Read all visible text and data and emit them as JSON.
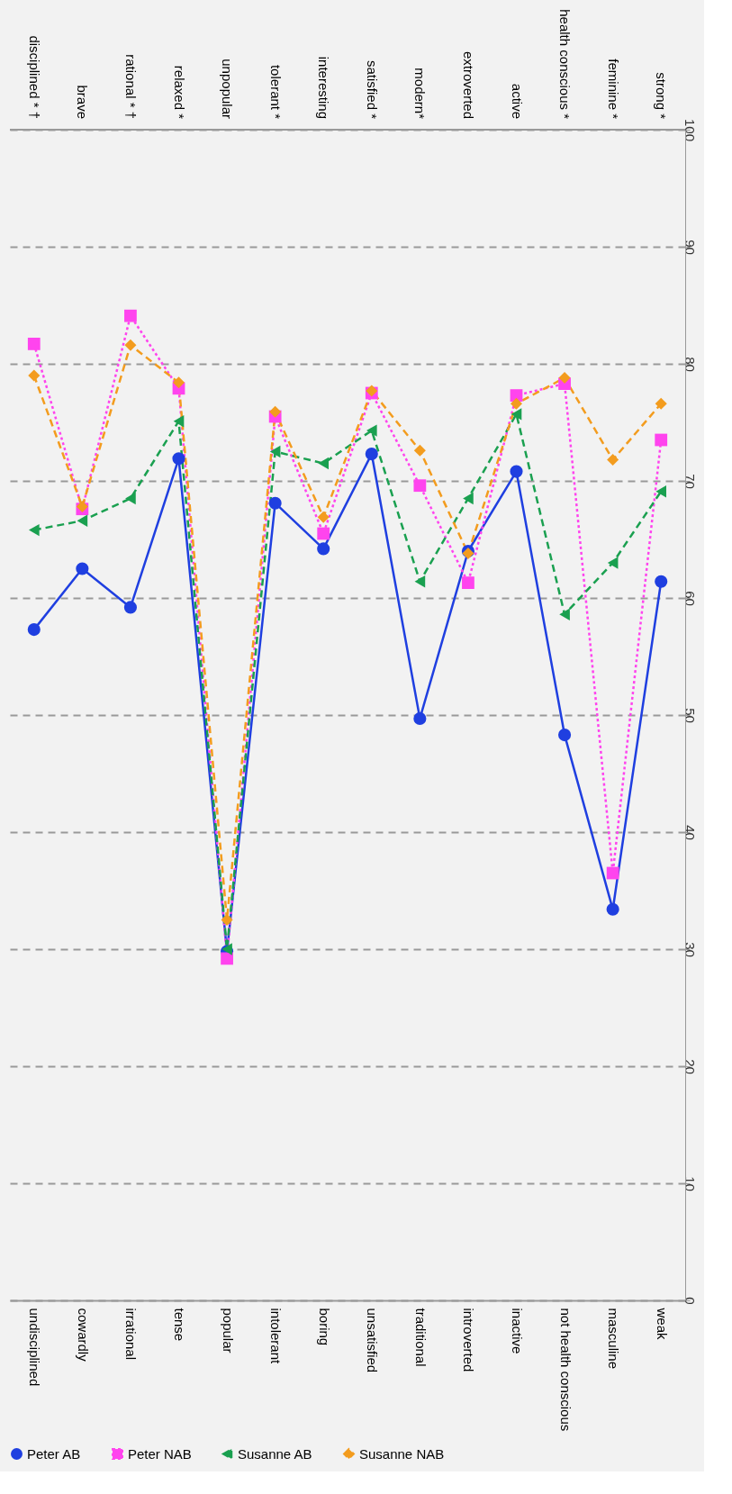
{
  "chart_data": {
    "type": "line",
    "categories": [
      "undisciplined",
      "cowardly",
      "irrational",
      "tense",
      "popular",
      "intolerant",
      "boring",
      "unsatisfied",
      "traditional",
      "introverted",
      "inactive",
      "not health conscious",
      "masculine",
      "weak"
    ],
    "annotations": [
      "disciplined * †",
      "brave",
      "rational * †",
      "relaxed *",
      "unpopular",
      "tolerant *",
      "interesting",
      "satisfied *",
      "modern*",
      "extroverted",
      "active",
      "health conscious *",
      "feminine *",
      "strong *"
    ],
    "series": [
      {
        "name": "Peter AB",
        "color": "#1f3fe0",
        "marker": "circle",
        "line_style": "solid",
        "values": [
          57.3,
          62.5,
          59.2,
          71.9,
          29.8,
          68.1,
          64.2,
          72.3,
          49.7,
          64.0,
          70.8,
          48.3,
          33.4,
          61.4
        ]
      },
      {
        "name": "Peter NAB",
        "color": "#ff44ee",
        "marker": "square",
        "line_style": "dotted",
        "values": [
          81.7,
          67.6,
          84.1,
          77.9,
          29.2,
          75.5,
          65.5,
          77.5,
          69.6,
          61.3,
          77.3,
          78.3,
          36.5,
          73.5
        ]
      },
      {
        "name": "Susanne AB",
        "color": "#1aa050",
        "marker": "triangle",
        "line_style": "dashed",
        "values": [
          65.8,
          66.6,
          68.5,
          75.1,
          30.0,
          72.5,
          71.5,
          74.3,
          61.4,
          68.5,
          75.7,
          58.6,
          63.0,
          69.1
        ]
      },
      {
        "name": "Susanne NAB",
        "color": "#f39c1e",
        "marker": "diamond",
        "line_style": "dashed",
        "values": [
          79.0,
          67.8,
          81.6,
          78.4,
          32.5,
          75.9,
          66.9,
          77.7,
          72.6,
          63.8,
          76.6,
          78.8,
          71.8,
          76.6
        ]
      }
    ],
    "ylim": [
      0,
      100
    ],
    "yticks": [
      0,
      10,
      20,
      30,
      40,
      50,
      60,
      70,
      80,
      90,
      100
    ],
    "grid": "y",
    "legend": "bottom"
  }
}
